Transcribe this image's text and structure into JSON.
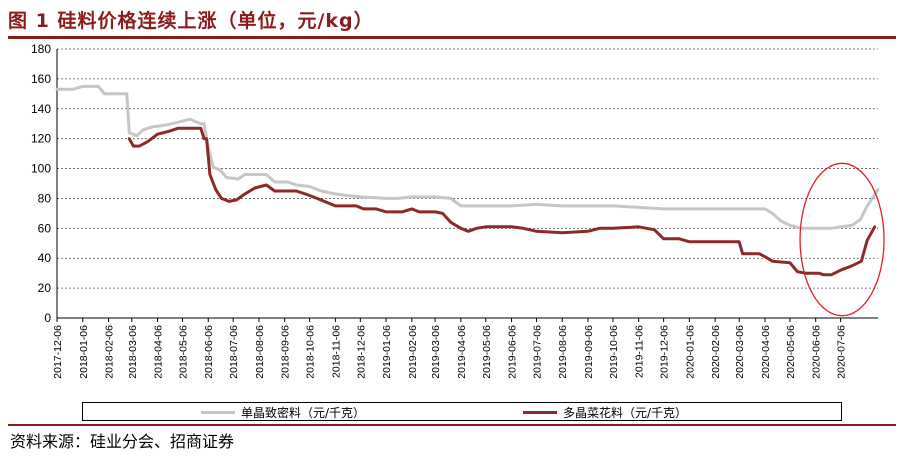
{
  "figure": {
    "title": "图 1 硅料价格连续上涨（单位，元/kg）",
    "source": "资料来源：硅业分会、招商证券"
  },
  "colors": {
    "title": "#8b1c1c",
    "mono": "#c6c6c6",
    "poly": "#8b2a2a",
    "highlight_circle": "#e02020",
    "rule": "#8b1c1c"
  },
  "chart_data": {
    "type": "line",
    "title": "",
    "xlabel": "",
    "ylabel": "",
    "ylim": [
      0,
      180
    ],
    "yticks": [
      0,
      20,
      40,
      60,
      80,
      100,
      120,
      140,
      160,
      180
    ],
    "grid": "horizontal dashed",
    "legend_position": "bottom",
    "x_dates_note_shown": false,
    "x_tick_labels": [
      "2017-12-06",
      "2018-01-06",
      "2018-02-06",
      "2018-03-06",
      "2018-04-06",
      "2018-05-06",
      "2018-06-06",
      "2018-07-06",
      "2018-08-06",
      "2018-09-06",
      "2018-10-06",
      "2018-11-06",
      "2018-12-06",
      "2019-01-06",
      "2019-02-06",
      "2019-03-06",
      "2019-04-06",
      "2019-05-06",
      "2019-06-06",
      "2019-07-06",
      "2019-08-06",
      "2019-09-06",
      "2019-10-06",
      "2019-11-06",
      "2019-12-06",
      "2020-01-06",
      "2020-02-06",
      "2020-03-06",
      "2020-04-06",
      "2020-05-06",
      "2020-06-06",
      "2020-07-06"
    ],
    "x_range": [
      "2017-12-06",
      "2020-08-20"
    ],
    "series": [
      {
        "name": "单晶致密料（元/千克）",
        "color": "#c6c6c6",
        "points": [
          [
            "2017-12-06",
            153
          ],
          [
            "2017-12-25",
            153
          ],
          [
            "2018-01-06",
            155
          ],
          [
            "2018-01-25",
            155
          ],
          [
            "2018-02-01",
            150
          ],
          [
            "2018-02-28",
            150
          ],
          [
            "2018-03-03",
            124
          ],
          [
            "2018-03-12",
            122
          ],
          [
            "2018-03-20",
            126
          ],
          [
            "2018-04-01",
            128
          ],
          [
            "2018-04-15",
            129
          ],
          [
            "2018-05-01",
            131
          ],
          [
            "2018-05-15",
            133
          ],
          [
            "2018-05-28",
            130
          ],
          [
            "2018-06-01",
            130
          ],
          [
            "2018-06-06",
            114
          ],
          [
            "2018-06-12",
            101
          ],
          [
            "2018-06-20",
            99
          ],
          [
            "2018-06-28",
            94
          ],
          [
            "2018-07-12",
            93
          ],
          [
            "2018-07-20",
            96
          ],
          [
            "2018-08-15",
            96
          ],
          [
            "2018-08-25",
            91
          ],
          [
            "2018-09-10",
            91
          ],
          [
            "2018-09-20",
            89
          ],
          [
            "2018-10-06",
            88
          ],
          [
            "2018-10-20",
            85
          ],
          [
            "2018-11-06",
            83
          ],
          [
            "2018-11-20",
            82
          ],
          [
            "2018-12-06",
            81
          ],
          [
            "2019-01-06",
            80
          ],
          [
            "2019-01-20",
            80
          ],
          [
            "2019-02-06",
            81
          ],
          [
            "2019-03-06",
            81
          ],
          [
            "2019-03-25",
            80
          ],
          [
            "2019-04-06",
            75
          ],
          [
            "2019-04-20",
            75
          ],
          [
            "2019-05-06",
            75
          ],
          [
            "2019-06-06",
            75
          ],
          [
            "2019-07-06",
            76
          ],
          [
            "2019-08-06",
            75
          ],
          [
            "2019-09-06",
            75
          ],
          [
            "2019-10-06",
            75
          ],
          [
            "2019-11-06",
            74
          ],
          [
            "2019-12-06",
            73
          ],
          [
            "2020-01-06",
            73
          ],
          [
            "2020-02-06",
            73
          ],
          [
            "2020-03-06",
            73
          ],
          [
            "2020-04-06",
            73
          ],
          [
            "2020-04-15",
            70
          ],
          [
            "2020-04-25",
            65
          ],
          [
            "2020-05-06",
            62
          ],
          [
            "2020-05-20",
            60
          ],
          [
            "2020-06-06",
            60
          ],
          [
            "2020-06-25",
            60
          ],
          [
            "2020-07-06",
            61
          ],
          [
            "2020-07-20",
            62
          ],
          [
            "2020-07-30",
            66
          ],
          [
            "2020-08-06",
            74
          ],
          [
            "2020-08-13",
            80
          ],
          [
            "2020-08-20",
            86
          ]
        ]
      },
      {
        "name": "多晶菜花料（元/千克）",
        "color": "#8b2a2a",
        "points": [
          [
            "2018-03-03",
            120
          ],
          [
            "2018-03-08",
            115
          ],
          [
            "2018-03-15",
            115
          ],
          [
            "2018-03-25",
            118
          ],
          [
            "2018-04-06",
            123
          ],
          [
            "2018-04-20",
            125
          ],
          [
            "2018-05-01",
            127
          ],
          [
            "2018-05-28",
            127
          ],
          [
            "2018-06-01",
            120
          ],
          [
            "2018-06-04",
            120
          ],
          [
            "2018-06-08",
            96
          ],
          [
            "2018-06-15",
            86
          ],
          [
            "2018-06-22",
            80
          ],
          [
            "2018-07-01",
            78
          ],
          [
            "2018-07-10",
            79
          ],
          [
            "2018-07-20",
            83
          ],
          [
            "2018-08-01",
            87
          ],
          [
            "2018-08-15",
            89
          ],
          [
            "2018-08-25",
            85
          ],
          [
            "2018-09-20",
            85
          ],
          [
            "2018-10-01",
            83
          ],
          [
            "2018-10-15",
            80
          ],
          [
            "2018-10-28",
            77
          ],
          [
            "2018-11-06",
            75
          ],
          [
            "2018-12-01",
            75
          ],
          [
            "2018-12-10",
            73
          ],
          [
            "2018-12-25",
            73
          ],
          [
            "2019-01-06",
            71
          ],
          [
            "2019-01-25",
            71
          ],
          [
            "2019-02-06",
            73
          ],
          [
            "2019-02-15",
            71
          ],
          [
            "2019-03-06",
            71
          ],
          [
            "2019-03-15",
            70
          ],
          [
            "2019-03-25",
            64
          ],
          [
            "2019-04-06",
            60
          ],
          [
            "2019-04-15",
            58
          ],
          [
            "2019-04-25",
            60
          ],
          [
            "2019-05-06",
            61
          ],
          [
            "2019-06-06",
            61
          ],
          [
            "2019-06-20",
            60
          ],
          [
            "2019-07-06",
            58
          ],
          [
            "2019-08-06",
            57
          ],
          [
            "2019-09-06",
            58
          ],
          [
            "2019-09-20",
            60
          ],
          [
            "2019-10-06",
            60
          ],
          [
            "2019-11-06",
            61
          ],
          [
            "2019-11-25",
            59
          ],
          [
            "2019-12-06",
            53
          ],
          [
            "2019-12-25",
            53
          ],
          [
            "2020-01-06",
            51
          ],
          [
            "2020-02-06",
            51
          ],
          [
            "2020-03-06",
            51
          ],
          [
            "2020-03-10",
            43
          ],
          [
            "2020-03-30",
            43
          ],
          [
            "2020-04-06",
            41
          ],
          [
            "2020-04-15",
            38
          ],
          [
            "2020-05-06",
            37
          ],
          [
            "2020-05-15",
            31
          ],
          [
            "2020-05-25",
            30
          ],
          [
            "2020-06-10",
            30
          ],
          [
            "2020-06-15",
            29
          ],
          [
            "2020-06-25",
            29
          ],
          [
            "2020-07-06",
            32
          ],
          [
            "2020-07-20",
            35
          ],
          [
            "2020-07-31",
            38
          ],
          [
            "2020-08-07",
            52
          ],
          [
            "2020-08-16",
            61
          ]
        ]
      }
    ]
  }
}
